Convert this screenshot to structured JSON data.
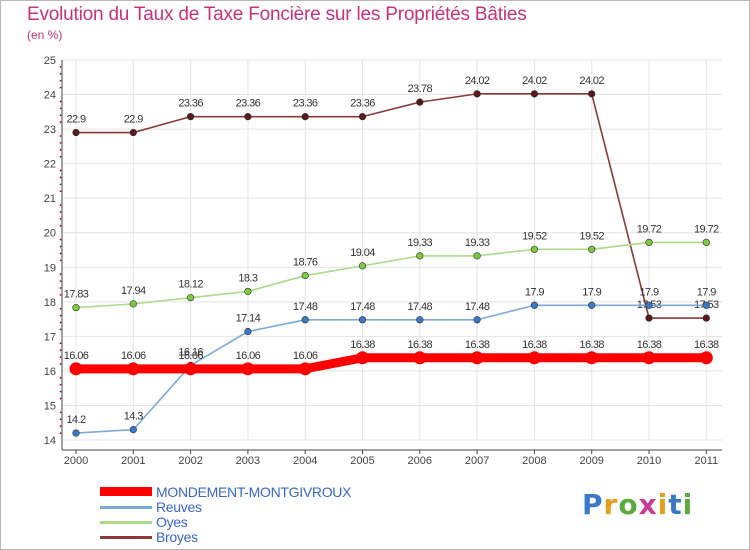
{
  "title": "Evolution du Taux de Taxe Foncière sur les Propriétés Bâties",
  "subtitle": "(en %)",
  "logo": {
    "text": "Proxiti",
    "letters": [
      "P",
      "r",
      "o",
      "x",
      "i",
      "t",
      "i"
    ],
    "colors": [
      "#3a78c8",
      "#e8a020",
      "#5aaa3c",
      "#c83c96",
      "#e0a020",
      "#3a78c8",
      "#5aaa3c"
    ]
  },
  "chart_data": {
    "type": "line",
    "title": "Evolution du Taux de Taxe Foncière sur les Propriétés Bâties",
    "ylabel": "(en %)",
    "xlabel": "",
    "ylim": [
      14,
      25
    ],
    "yticks": [
      14,
      15,
      16,
      17,
      18,
      19,
      20,
      21,
      22,
      23,
      24,
      25
    ],
    "x": [
      "2000",
      "2001",
      "2002",
      "2003",
      "2004",
      "2005",
      "2006",
      "2007",
      "2008",
      "2009",
      "2010",
      "2011"
    ],
    "grid": true,
    "series": [
      {
        "name": "Broyes",
        "color": "#8b3a3a",
        "marker_color": "#5a1818",
        "thick": false,
        "values": [
          22.9,
          22.9,
          23.36,
          23.36,
          23.36,
          23.36,
          23.78,
          24.02,
          24.02,
          24.02,
          17.53,
          17.53
        ],
        "labels": [
          "22.9",
          "22.9",
          "23.36",
          "23.36",
          "23.36",
          "23.36",
          "23.78",
          "24.02",
          "24.02",
          "24.02",
          "17.53",
          "17.53"
        ]
      },
      {
        "name": "Oyes",
        "color": "#a8dc88",
        "marker_color": "#7acc3c",
        "thick": false,
        "values": [
          17.83,
          17.94,
          18.12,
          18.3,
          18.76,
          19.04,
          19.33,
          19.33,
          19.52,
          19.52,
          19.72,
          19.72
        ],
        "labels": [
          "17.83",
          "17.94",
          "18.12",
          "18.3",
          "18.76",
          "19.04",
          "19.33",
          "19.33",
          "19.52",
          "19.52",
          "19.72",
          "19.72"
        ]
      },
      {
        "name": "Reuves",
        "color": "#7aaad8",
        "marker_color": "#3a78c8",
        "thick": false,
        "values": [
          14.2,
          14.3,
          16.16,
          17.14,
          17.48,
          17.48,
          17.48,
          17.48,
          17.9,
          17.9,
          17.9,
          17.9
        ],
        "labels": [
          "14.2",
          "14.3",
          "16.16",
          "17.14",
          "17.48",
          "17.48",
          "17.48",
          "17.48",
          "17.9",
          "17.9",
          "17.9",
          "17.9"
        ]
      },
      {
        "name": "MONDEMENT-MONTGIVROUX",
        "color": "#ff0000",
        "marker_color": "#ff0000",
        "thick": true,
        "values": [
          16.06,
          16.06,
          16.06,
          16.06,
          16.06,
          16.38,
          16.38,
          16.38,
          16.38,
          16.38,
          16.38,
          16.38
        ],
        "labels": [
          "16.06",
          "16.06",
          "16.06",
          "16.06",
          "16.06",
          "16.38",
          "16.38",
          "16.38",
          "16.38",
          "16.38",
          "16.38",
          "16.38"
        ]
      }
    ],
    "legend": [
      "MONDEMENT-MONTGIVROUX",
      "Reuves",
      "Oyes",
      "Broyes"
    ]
  }
}
